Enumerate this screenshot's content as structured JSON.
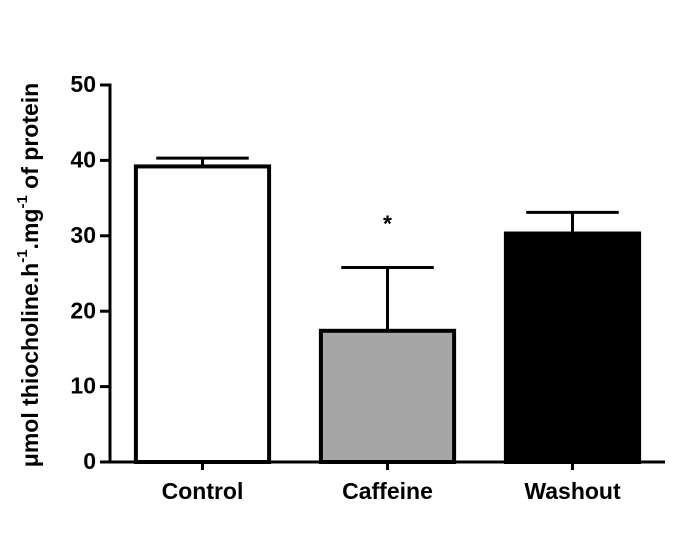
{
  "chart_data": {
    "type": "bar",
    "y_label_parts": [
      {
        "text": "μmol thiocholine.h"
      },
      {
        "text": "-1",
        "sup": true
      },
      {
        "text": ".mg"
      },
      {
        "text": "-1",
        "sup": true
      },
      {
        "text": " of protein"
      }
    ],
    "categories": [
      "Control",
      "Caffeine",
      "Washout"
    ],
    "values": [
      39.2,
      17.4,
      30.3
    ],
    "errors": [
      1.1,
      8.4,
      2.8
    ],
    "colors": [
      "#ffffff",
      "#a6a6a6",
      "#000000"
    ],
    "annotations": [
      {
        "category": 1,
        "text": "*"
      }
    ],
    "ylim": [
      0,
      50
    ],
    "yticks": [
      0,
      10,
      20,
      30,
      40,
      50
    ]
  }
}
